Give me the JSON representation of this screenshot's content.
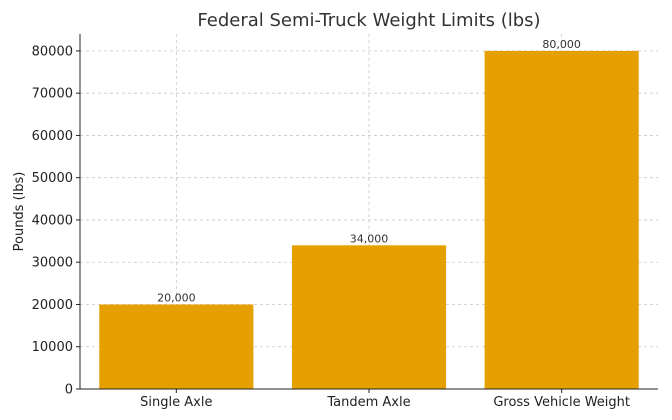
{
  "chart_data": {
    "type": "bar",
    "title": "Federal Semi-Truck Weight Limits (lbs)",
    "xlabel": "",
    "ylabel": "Pounds (lbs)",
    "categories": [
      "Single Axle",
      "Tandem Axle",
      "Gross Vehicle Weight"
    ],
    "values": [
      20000,
      34000,
      80000
    ],
    "data_labels": [
      "20,000",
      "34,000",
      "80,000"
    ],
    "ylim": [
      0,
      84000
    ],
    "yticks": [
      0,
      10000,
      20000,
      30000,
      40000,
      50000,
      60000,
      70000,
      80000
    ],
    "ytick_labels": [
      "0",
      "10000",
      "20000",
      "30000",
      "40000",
      "50000",
      "60000",
      "70000",
      "80000"
    ],
    "grid": true,
    "colors": {
      "bar": "#E5A000",
      "grid": "#c8c8c8",
      "axis": "#222222"
    }
  }
}
